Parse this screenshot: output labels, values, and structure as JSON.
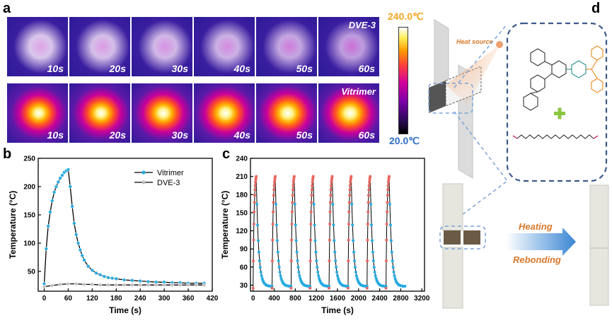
{
  "panels": {
    "a": "a",
    "b": "b",
    "c": "c",
    "d": "d"
  },
  "thermal_imaging": {
    "rows": [
      {
        "name": "DVE-3",
        "times": [
          "10s",
          "20s",
          "30s",
          "40s",
          "50s",
          "60s"
        ],
        "intensity": [
          0.08,
          0.12,
          0.16,
          0.2,
          0.26,
          0.32
        ]
      },
      {
        "name": "Vitrimer",
        "times": [
          "10s",
          "20s",
          "30s",
          "40s",
          "50s",
          "60s"
        ],
        "intensity": [
          0.55,
          0.65,
          0.74,
          0.82,
          0.9,
          0.96
        ]
      }
    ],
    "colorbar": {
      "max_label": "240.0℃",
      "min_label": "20.0℃",
      "max_color": "#f5a623",
      "min_color": "#2e6fc4"
    }
  },
  "chart_data": [
    {
      "type": "line",
      "panel": "b",
      "xlabel": "Time (s)",
      "ylabel": "Temperature (°C)",
      "xlim": [
        -15,
        420
      ],
      "ylim": [
        15,
        250
      ],
      "xticks": [
        0,
        60,
        120,
        180,
        240,
        300,
        360,
        420
      ],
      "yticks": [
        50,
        100,
        150,
        200,
        250
      ],
      "legend": [
        "Vitrimer",
        "DVE-3"
      ],
      "series": [
        {
          "name": "Vitrimer",
          "color": "#29abe2",
          "x": [
            0,
            5,
            10,
            15,
            20,
            25,
            30,
            35,
            40,
            45,
            50,
            55,
            60,
            65,
            70,
            75,
            80,
            85,
            90,
            95,
            100,
            110,
            120,
            130,
            140,
            150,
            160,
            170,
            180,
            200,
            220,
            240,
            260,
            280,
            300,
            320,
            340,
            360,
            380,
            400
          ],
          "y": [
            28,
            90,
            130,
            155,
            175,
            190,
            200,
            208,
            215,
            220,
            225,
            228,
            230,
            200,
            165,
            135,
            115,
            100,
            88,
            78,
            70,
            59,
            52,
            47,
            44,
            41,
            39,
            38,
            37,
            35,
            34,
            33,
            32,
            31,
            31,
            30,
            30,
            29,
            29,
            29
          ]
        },
        {
          "name": "DVE-3",
          "color": "#bfbfbf",
          "x": [
            0,
            20,
            40,
            60,
            80,
            100,
            120,
            140,
            160,
            180,
            200,
            220,
            240,
            260,
            280,
            300,
            320,
            340,
            360,
            380,
            400
          ],
          "y": [
            23,
            25,
            27,
            28,
            28,
            27,
            27,
            26,
            26,
            26,
            26,
            26,
            26,
            26,
            26,
            26,
            26,
            26,
            26,
            26,
            26
          ]
        }
      ]
    },
    {
      "type": "line",
      "panel": "c",
      "xlabel": "Time (s)",
      "ylabel": "Temperature (°C)",
      "xlim": [
        -50,
        3250
      ],
      "ylim": [
        20,
        240
      ],
      "xticks": [
        0,
        400,
        800,
        1200,
        1600,
        2000,
        2400,
        2800,
        3200
      ],
      "yticks": [
        30,
        60,
        90,
        120,
        150,
        180,
        210,
        240
      ],
      "cycles": 8,
      "cycle_period_s": 360,
      "heating_duration_s": 60,
      "peak_temperature": 210,
      "base_temperature": 25,
      "heating_color": "#e8665f",
      "cooling_color": "#29abe2"
    }
  ],
  "schematic": {
    "heat_source_label": "Heat source",
    "heating_label": "Heating",
    "rebonding_label": "Rebonding",
    "label_color": "#d9782b",
    "arrow_color": "#3a86d4",
    "plus_color": "#8cc63f"
  }
}
